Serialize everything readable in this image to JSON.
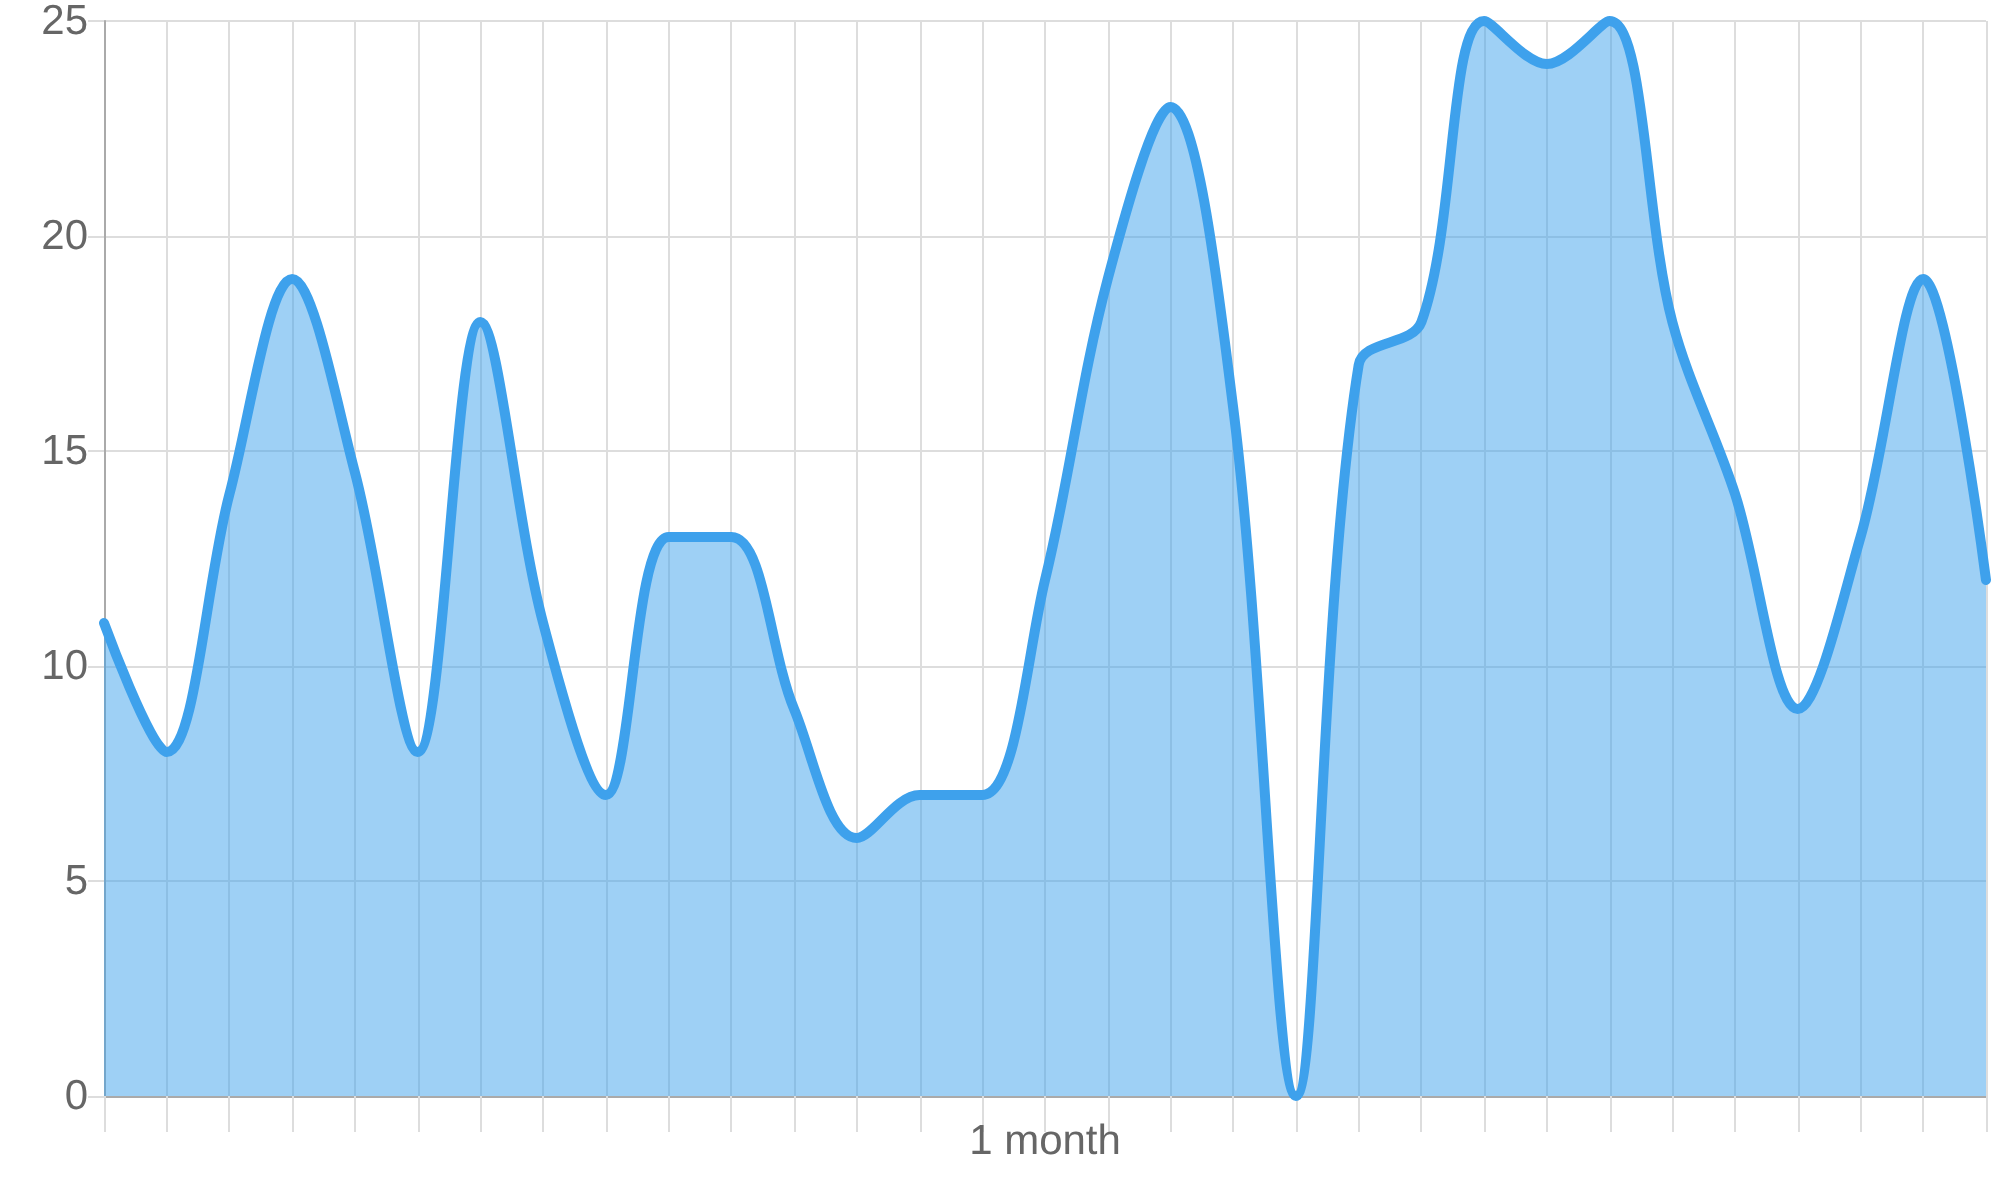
{
  "chart_data": {
    "type": "area",
    "categories": [
      null,
      null,
      null,
      null,
      null,
      null,
      null,
      null,
      null,
      null,
      null,
      null,
      null,
      null,
      null,
      "1 month",
      null,
      null,
      null,
      null,
      null,
      null,
      null,
      null,
      null,
      null,
      null,
      null,
      null,
      null,
      null
    ],
    "series": [
      {
        "color": "#3ea1ec",
        "values": [
          11,
          8,
          14,
          19,
          14.5,
          8,
          18,
          11,
          7,
          13,
          13,
          9,
          6,
          7,
          7,
          12,
          19,
          23,
          16,
          0,
          17,
          18,
          25,
          24,
          25,
          18,
          14,
          9,
          13,
          19,
          12
        ]
      }
    ],
    "ylim": [
      0,
      25
    ],
    "yticks": [
      0,
      5,
      10,
      15,
      20,
      25
    ],
    "grid": true,
    "marker": "none",
    "line_style": "solid"
  }
}
